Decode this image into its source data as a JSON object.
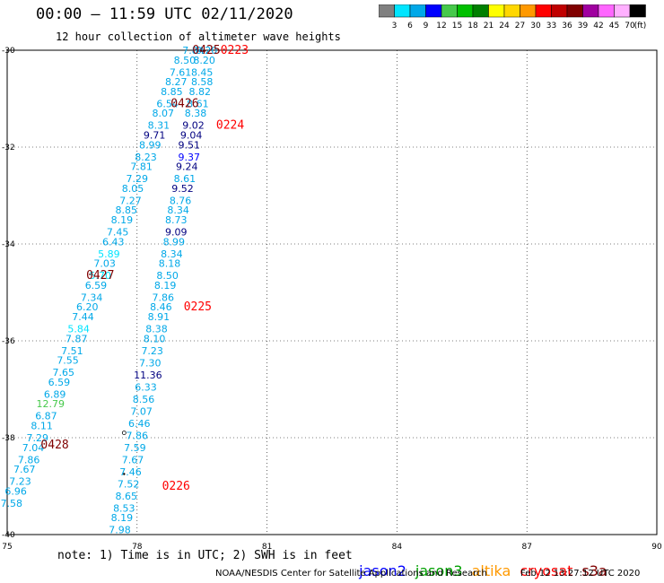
{
  "chart_data": {
    "type": "scatter",
    "title": "00:00 – 11:59 UTC 02/11/2020",
    "subtitle": "12 hour collection of altimeter wave heights",
    "xlabel": "",
    "ylabel": "",
    "xlim": [
      75,
      90
    ],
    "ylim": [
      -40,
      -30
    ],
    "x_ticks": [
      "75",
      "78",
      "81",
      "84",
      "87",
      "90"
    ],
    "y_ticks": [
      "-30",
      "-32",
      "-34",
      "-36",
      "-38",
      "-40"
    ],
    "grid": true,
    "colorbar": {
      "unit_label": "(ft)",
      "ticks": [
        "3",
        "6",
        "9",
        "12",
        "15",
        "18",
        "21",
        "24",
        "27",
        "30",
        "33",
        "36",
        "39",
        "42",
        "45",
        "70"
      ],
      "colors": [
        "#808080",
        "#00e5ff",
        "#00a8e8",
        "#0000ff",
        "#46c94b",
        "#00c000",
        "#008000",
        "#ffff00",
        "#ffd700",
        "#ff9900",
        "#ff0000",
        "#c00000",
        "#800000",
        "#a000a0",
        "#ff66ff",
        "#ffb0ff",
        "#000000"
      ]
    },
    "series": [
      {
        "name": "",
        "points": [
          {
            "lon": 79.3,
            "lat": -30.0,
            "v": "7.84",
            "c": "#00a8e8"
          },
          {
            "lon": 79.1,
            "lat": -30.2,
            "v": "8.50",
            "c": "#00a8e8"
          },
          {
            "lon": 79.0,
            "lat": -30.45,
            "v": "7.61",
            "c": "#00a8e8"
          },
          {
            "lon": 78.9,
            "lat": -30.65,
            "v": "8.27",
            "c": "#00a8e8"
          },
          {
            "lon": 78.8,
            "lat": -30.85,
            "v": "8.85",
            "c": "#00a8e8"
          },
          {
            "lon": 78.7,
            "lat": -31.1,
            "v": "6.54",
            "c": "#00a8e8"
          },
          {
            "lon": 78.6,
            "lat": -31.3,
            "v": "8.07",
            "c": "#00a8e8"
          },
          {
            "lon": 78.5,
            "lat": -31.55,
            "v": "8.31",
            "c": "#00a8e8"
          },
          {
            "lon": 78.4,
            "lat": -31.75,
            "v": "9.71",
            "c": "#000080"
          },
          {
            "lon": 78.3,
            "lat": -31.95,
            "v": "8.99",
            "c": "#00a8e8"
          },
          {
            "lon": 78.2,
            "lat": -32.2,
            "v": "8.23",
            "c": "#00a8e8"
          },
          {
            "lon": 78.1,
            "lat": -32.4,
            "v": "7.81",
            "c": "#00a8e8"
          },
          {
            "lon": 78.0,
            "lat": -32.65,
            "v": "7.29",
            "c": "#00a8e8"
          },
          {
            "lon": 77.9,
            "lat": -32.85,
            "v": "8.05",
            "c": "#00a8e8"
          },
          {
            "lon": 77.85,
            "lat": -33.1,
            "v": "7.27",
            "c": "#00a8e8"
          },
          {
            "lon": 77.75,
            "lat": -33.3,
            "v": "8.85",
            "c": "#00a8e8"
          },
          {
            "lon": 77.65,
            "lat": -33.5,
            "v": "8.19",
            "c": "#00a8e8"
          },
          {
            "lon": 77.55,
            "lat": -33.75,
            "v": "7.45",
            "c": "#00a8e8"
          },
          {
            "lon": 77.45,
            "lat": -33.95,
            "v": "6.43",
            "c": "#00a8e8"
          },
          {
            "lon": 77.35,
            "lat": -34.2,
            "v": "5.89",
            "c": "#00e5ff"
          },
          {
            "lon": 77.25,
            "lat": -34.4,
            "v": "7.03",
            "c": "#00a8e8"
          },
          {
            "lon": 77.15,
            "lat": -34.65,
            "v": "5.70",
            "c": "#00e5ff"
          },
          {
            "lon": 77.05,
            "lat": -34.85,
            "v": "6.59",
            "c": "#00a8e8"
          },
          {
            "lon": 76.95,
            "lat": -35.1,
            "v": "7.34",
            "c": "#00a8e8"
          },
          {
            "lon": 76.85,
            "lat": -35.3,
            "v": "6.20",
            "c": "#00a8e8"
          },
          {
            "lon": 76.75,
            "lat": -35.5,
            "v": "7.44",
            "c": "#00a8e8"
          },
          {
            "lon": 76.65,
            "lat": -35.75,
            "v": "5.84",
            "c": "#00e5ff"
          },
          {
            "lon": 76.6,
            "lat": -35.95,
            "v": "7.87",
            "c": "#00a8e8"
          },
          {
            "lon": 76.5,
            "lat": -36.2,
            "v": "7.51",
            "c": "#00a8e8"
          },
          {
            "lon": 76.4,
            "lat": -36.4,
            "v": "7.55",
            "c": "#00a8e8"
          },
          {
            "lon": 76.3,
            "lat": -36.65,
            "v": "7.65",
            "c": "#00a8e8"
          },
          {
            "lon": 76.2,
            "lat": -36.85,
            "v": "6.59",
            "c": "#00a8e8"
          },
          {
            "lon": 76.1,
            "lat": -37.1,
            "v": "6.89",
            "c": "#00a8e8"
          },
          {
            "lon": 76.0,
            "lat": -37.3,
            "v": "12.79",
            "c": "#46c94b"
          },
          {
            "lon": 75.9,
            "lat": -37.55,
            "v": "6.87",
            "c": "#00a8e8"
          },
          {
            "lon": 75.8,
            "lat": -37.75,
            "v": "8.11",
            "c": "#00a8e8"
          },
          {
            "lon": 75.7,
            "lat": -38.0,
            "v": "7.29",
            "c": "#00a8e8"
          },
          {
            "lon": 75.6,
            "lat": -38.2,
            "v": "7.04",
            "c": "#00a8e8"
          },
          {
            "lon": 75.5,
            "lat": -38.45,
            "v": "7.86",
            "c": "#00a8e8"
          },
          {
            "lon": 75.4,
            "lat": -38.65,
            "v": "7.67",
            "c": "#00a8e8"
          },
          {
            "lon": 75.3,
            "lat": -38.9,
            "v": "7.23",
            "c": "#00a8e8"
          },
          {
            "lon": 75.2,
            "lat": -39.1,
            "v": "6.96",
            "c": "#00a8e8"
          },
          {
            "lon": 75.1,
            "lat": -39.35,
            "v": "7.58",
            "c": "#00a8e8"
          }
        ]
      },
      {
        "name": "",
        "points": [
          {
            "lon": 79.6,
            "lat": -30.0,
            "v": "8.20",
            "c": "#00a8e8"
          },
          {
            "lon": 79.55,
            "lat": -30.2,
            "v": "8.20",
            "c": "#00a8e8"
          },
          {
            "lon": 79.5,
            "lat": -30.45,
            "v": "8.45",
            "c": "#00a8e8"
          },
          {
            "lon": 79.5,
            "lat": -30.65,
            "v": "8.58",
            "c": "#00a8e8"
          },
          {
            "lon": 79.45,
            "lat": -30.85,
            "v": "8.82",
            "c": "#00a8e8"
          },
          {
            "lon": 79.4,
            "lat": -31.1,
            "v": "8.61",
            "c": "#00a8e8"
          },
          {
            "lon": 79.35,
            "lat": -31.3,
            "v": "8.38",
            "c": "#00a8e8"
          },
          {
            "lon": 79.3,
            "lat": -31.55,
            "v": "9.02",
            "c": "#000080"
          },
          {
            "lon": 79.25,
            "lat": -31.75,
            "v": "9.04",
            "c": "#000080"
          },
          {
            "lon": 79.2,
            "lat": -31.95,
            "v": "9.51",
            "c": "#000080"
          },
          {
            "lon": 79.2,
            "lat": -32.2,
            "v": "9.37",
            "c": "#0000ff"
          },
          {
            "lon": 79.15,
            "lat": -32.4,
            "v": "9.24",
            "c": "#000080"
          },
          {
            "lon": 79.1,
            "lat": -32.65,
            "v": "8.61",
            "c": "#00a8e8"
          },
          {
            "lon": 79.05,
            "lat": -32.85,
            "v": "9.52",
            "c": "#000080"
          },
          {
            "lon": 79.0,
            "lat": -33.1,
            "v": "8.76",
            "c": "#00a8e8"
          },
          {
            "lon": 78.95,
            "lat": -33.3,
            "v": "8.34",
            "c": "#00a8e8"
          },
          {
            "lon": 78.9,
            "lat": -33.5,
            "v": "8.73",
            "c": "#00a8e8"
          },
          {
            "lon": 78.9,
            "lat": -33.75,
            "v": "9.09",
            "c": "#000080"
          },
          {
            "lon": 78.85,
            "lat": -33.95,
            "v": "8.99",
            "c": "#00a8e8"
          },
          {
            "lon": 78.8,
            "lat": -34.2,
            "v": "8.34",
            "c": "#00a8e8"
          },
          {
            "lon": 78.75,
            "lat": -34.4,
            "v": "8.18",
            "c": "#00a8e8"
          },
          {
            "lon": 78.7,
            "lat": -34.65,
            "v": "8.50",
            "c": "#00a8e8"
          },
          {
            "lon": 78.65,
            "lat": -34.85,
            "v": "8.19",
            "c": "#00a8e8"
          },
          {
            "lon": 78.6,
            "lat": -35.1,
            "v": "7.86",
            "c": "#00a8e8"
          },
          {
            "lon": 78.55,
            "lat": -35.3,
            "v": "8.46",
            "c": "#00a8e8"
          },
          {
            "lon": 78.5,
            "lat": -35.5,
            "v": "8.91",
            "c": "#00a8e8"
          },
          {
            "lon": 78.45,
            "lat": -35.75,
            "v": "8.38",
            "c": "#00a8e8"
          },
          {
            "lon": 78.4,
            "lat": -35.95,
            "v": "8.10",
            "c": "#00a8e8"
          },
          {
            "lon": 78.35,
            "lat": -36.2,
            "v": "7.23",
            "c": "#00a8e8"
          },
          {
            "lon": 78.3,
            "lat": -36.45,
            "v": "7.30",
            "c": "#00a8e8"
          },
          {
            "lon": 78.25,
            "lat": -36.7,
            "v": "11.36",
            "c": "#000080"
          },
          {
            "lon": 78.2,
            "lat": -36.95,
            "v": "6.33",
            "c": "#00a8e8"
          },
          {
            "lon": 78.15,
            "lat": -37.2,
            "v": "8.56",
            "c": "#00a8e8"
          },
          {
            "lon": 78.1,
            "lat": -37.45,
            "v": "7.07",
            "c": "#00a8e8"
          },
          {
            "lon": 78.05,
            "lat": -37.7,
            "v": "6.46",
            "c": "#00a8e8"
          },
          {
            "lon": 78.0,
            "lat": -37.95,
            "v": "7.86",
            "c": "#00a8e8"
          },
          {
            "lon": 77.95,
            "lat": -38.2,
            "v": "7.59",
            "c": "#00a8e8"
          },
          {
            "lon": 77.9,
            "lat": -38.45,
            "v": "7.67",
            "c": "#00a8e8"
          },
          {
            "lon": 77.85,
            "lat": -38.7,
            "v": "7.46",
            "c": "#00a8e8"
          },
          {
            "lon": 77.8,
            "lat": -38.95,
            "v": "7.52",
            "c": "#00a8e8"
          },
          {
            "lon": 77.75,
            "lat": -39.2,
            "v": "8.65",
            "c": "#00a8e8"
          },
          {
            "lon": 77.7,
            "lat": -39.45,
            "v": "8.53",
            "c": "#00a8e8"
          },
          {
            "lon": 77.65,
            "lat": -39.65,
            "v": "8.19",
            "c": "#00a8e8"
          },
          {
            "lon": 77.6,
            "lat": -39.9,
            "v": "7.98",
            "c": "#00a8e8"
          }
        ]
      }
    ],
    "time_labels": [
      {
        "lon": 79.6,
        "lat": -30.0,
        "v": "0425",
        "c": "#800000"
      },
      {
        "lon": 80.25,
        "lat": -30.0,
        "v": "0223",
        "c": "#ff0000"
      },
      {
        "lon": 79.1,
        "lat": -31.1,
        "v": "0426",
        "c": "#800000"
      },
      {
        "lon": 80.15,
        "lat": -31.55,
        "v": "0224",
        "c": "#ff0000"
      },
      {
        "lon": 77.15,
        "lat": -34.65,
        "v": "0427",
        "c": "#800000"
      },
      {
        "lon": 79.4,
        "lat": -35.3,
        "v": "0225",
        "c": "#ff0000"
      },
      {
        "lon": 76.1,
        "lat": -38.15,
        "v": "0428",
        "c": "#800000"
      },
      {
        "lon": 78.9,
        "lat": -39.0,
        "v": "0226",
        "c": "#ff0000"
      }
    ]
  },
  "note": "note: 1) Time is in UTC; 2) SWH is in feet",
  "missions": [
    {
      "name": "jason2",
      "color": "#0000ff"
    },
    {
      "name": "jason3",
      "color": "#00a000"
    },
    {
      "name": "altika",
      "color": "#ff9900"
    },
    {
      "name": "cryosat",
      "color": "#ff0000"
    },
    {
      "name": "s3a",
      "color": "#800000"
    }
  ],
  "credit": "NOAA/NESDIS Center for Satellite Applications and Research",
  "credit_time": "Feb 12 13:27:12 UTC 2020"
}
